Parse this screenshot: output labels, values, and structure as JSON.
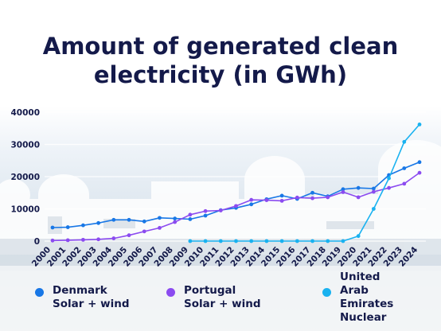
{
  "title": [
    "Amount of generated clean",
    "electricity (in GWh)"
  ],
  "chart_data": {
    "type": "line",
    "title": "Amount of generated clean electricity (in GWh)",
    "xlabel": "",
    "ylabel": "",
    "categories": [
      "2000",
      "2001",
      "2002",
      "2003",
      "2004",
      "2005",
      "2006",
      "2007",
      "2008",
      "2009",
      "2010",
      "2011",
      "2012",
      "2013",
      "2014",
      "2015",
      "2016",
      "2017",
      "2018",
      "2019",
      "2020",
      "2021",
      "2022",
      "2023",
      "2024"
    ],
    "y_ticks": [
      "0",
      "10000",
      "20000",
      "30000",
      "40000"
    ],
    "ylim": [
      0,
      40000
    ],
    "grid": true,
    "legend_position": "bottom",
    "series": [
      {
        "name": "Denmark Solar + wind",
        "color": "#1877e6",
        "values": [
          4200,
          4300,
          4900,
          5600,
          6600,
          6600,
          6100,
          7200,
          7000,
          6800,
          7900,
          9600,
          10300,
          11400,
          13000,
          14100,
          13100,
          15000,
          13900,
          16100,
          16500,
          16300,
          20500,
          22600,
          24500
        ]
      },
      {
        "name": "Portugal Solar + wind",
        "color": "#8b4bf0",
        "values": [
          170,
          270,
          400,
          550,
          850,
          1800,
          3000,
          4100,
          5900,
          8200,
          9300,
          9500,
          10900,
          12800,
          12700,
          12500,
          13500,
          13300,
          13600,
          15200,
          13600,
          15300,
          16500,
          17800,
          21200
        ]
      },
      {
        "name": "United Arab Emirates Nuclear",
        "color": "#1ab2f0",
        "values": [
          null,
          null,
          null,
          null,
          null,
          null,
          null,
          null,
          null,
          0,
          0,
          0,
          0,
          0,
          0,
          0,
          0,
          0,
          0,
          0,
          1560,
          10000,
          19500,
          30800,
          36200
        ]
      }
    ]
  },
  "legend": [
    {
      "lines": [
        "Denmark",
        "Solar + wind"
      ],
      "color": "#1877e6"
    },
    {
      "lines": [
        "Portugal",
        "Solar + wind"
      ],
      "color": "#8b4bf0"
    },
    {
      "lines": [
        "United",
        "Arab",
        "Emirates",
        "Nuclear"
      ],
      "color": "#1ab2f0"
    }
  ]
}
